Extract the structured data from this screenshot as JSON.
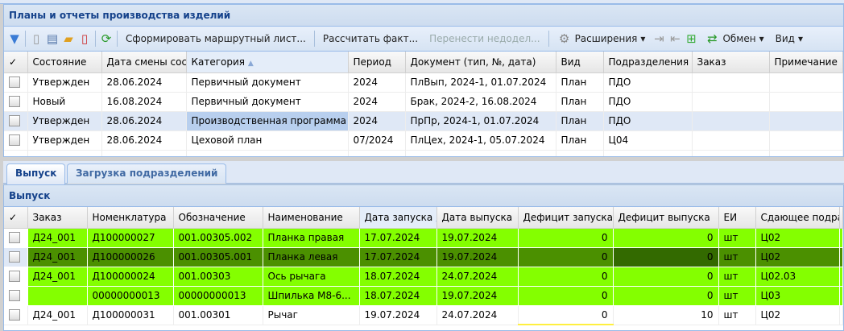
{
  "top_panel": {
    "title": "Планы и отчеты производства изделий",
    "toolbar": {
      "form_route": "Сформировать маршрутный лист...",
      "calc_fact": "Рассчитать факт...",
      "transfer": "Перенести недодел...",
      "extensions": "Расширения",
      "exchange": "Обмен",
      "view": "Вид"
    },
    "columns": [
      "Состояние",
      "Дата смены сост",
      "Категория",
      "Период",
      "Документ (тип, №, дата)",
      "Вид",
      "Подразделения",
      "Заказ",
      "Примечание"
    ],
    "rows": [
      [
        "Утвержден",
        "28.06.2024",
        "Первичный документ",
        "2024",
        "ПлВып, 2024-1, 01.07.2024",
        "План",
        "ПДО",
        "",
        ""
      ],
      [
        "Новый",
        "16.08.2024",
        "Первичный документ",
        "2024",
        "Брак, 2024-2, 16.08.2024",
        "План",
        "ПДО",
        "",
        ""
      ],
      [
        "Утвержден",
        "28.06.2024",
        "Производственная программа",
        "2024",
        "ПрПр, 2024-1, 01.07.2024",
        "План",
        "ПДО",
        "",
        ""
      ],
      [
        "Утвержден",
        "28.06.2024",
        "Цеховой план",
        "07/2024",
        "ПлЦех, 2024-1, 05.07.2024",
        "План",
        "Ц04",
        "",
        ""
      ]
    ]
  },
  "tabs": [
    "Выпуск",
    "Загрузка подразделений"
  ],
  "bottom_panel": {
    "title": "Выпуск",
    "columns": [
      "Заказ",
      "Номенклатура",
      "Обозначение",
      "Наименование",
      "Дата запуска",
      "Дата выпуска",
      "Дефицит запуска",
      "Дефицит выпуска",
      "ЕИ",
      "Сдающее подраз"
    ],
    "rows": [
      [
        "Д24_001",
        "Д100000027",
        "001.00305.002",
        "Планка правая",
        "17.07.2024",
        "19.07.2024",
        "0",
        "0",
        "шт",
        "Ц02"
      ],
      [
        "Д24_001",
        "Д100000026",
        "001.00305.001",
        "Планка левая",
        "17.07.2024",
        "19.07.2024",
        "0",
        "0",
        "шт",
        "Ц02"
      ],
      [
        "Д24_001",
        "Д100000024",
        "001.00303",
        "Ось рычага",
        "18.07.2024",
        "24.07.2024",
        "0",
        "0",
        "шт",
        "Ц02.03"
      ],
      [
        "",
        "00000000013",
        "00000000013",
        "Шпилька М8-6...",
        "18.07.2024",
        "19.07.2024",
        "0",
        "0",
        "шт",
        "Ц03"
      ],
      [
        "Д24_001",
        "Д100000031",
        "001.00301",
        "Рычаг",
        "19.07.2024",
        "24.07.2024",
        "0",
        "10",
        "шт",
        "Ц02"
      ]
    ]
  },
  "colors": {
    "row_green": "#84ff00",
    "row_selected_green": "#4b9000",
    "header_blue": "#15428b"
  }
}
